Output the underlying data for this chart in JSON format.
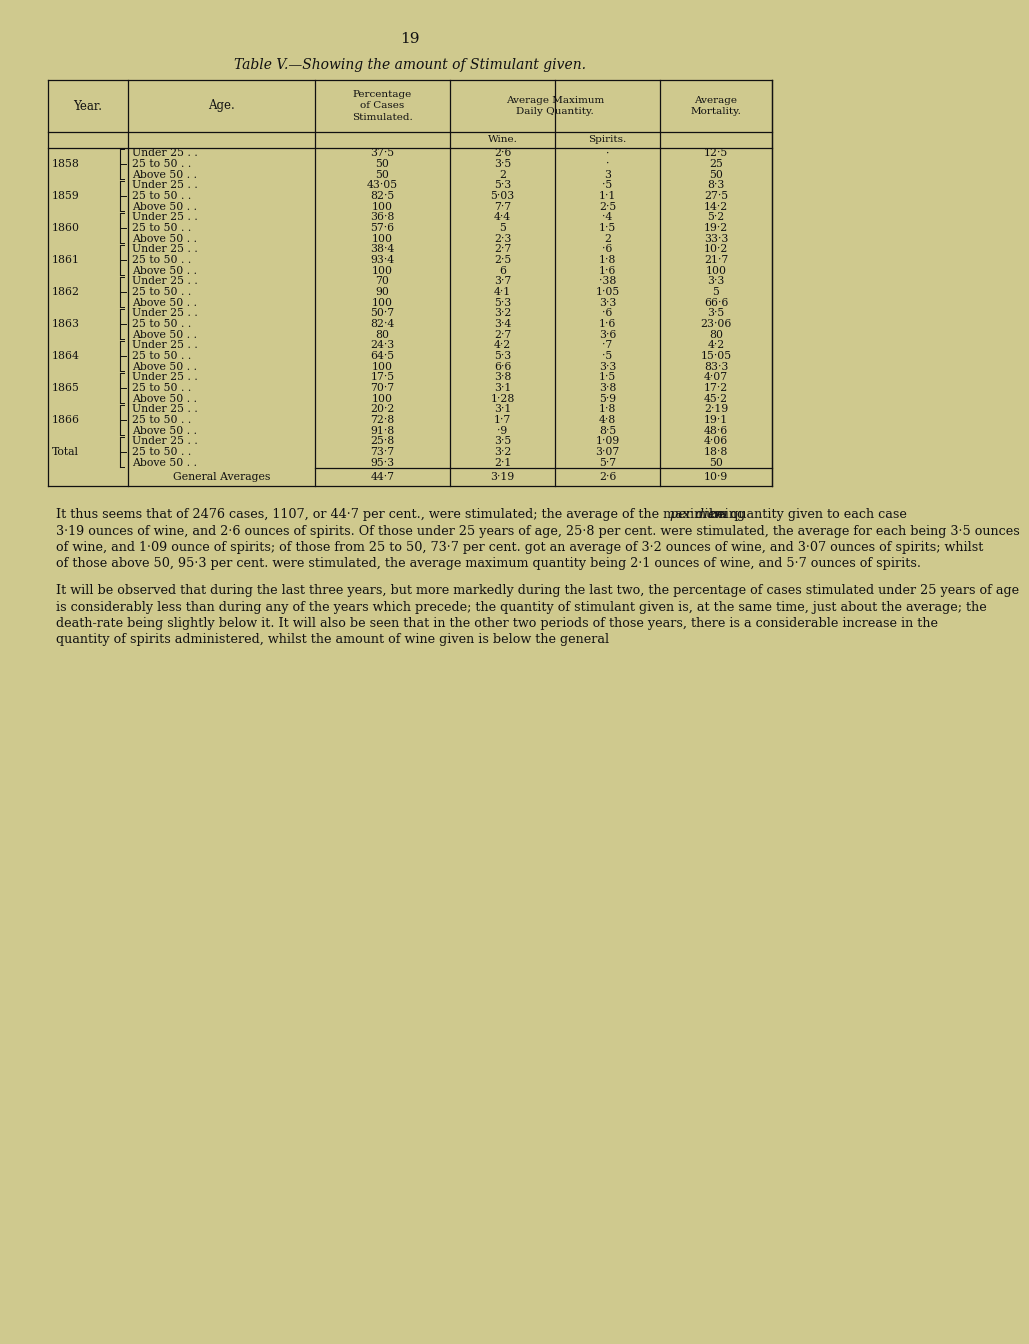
{
  "page_number": "19",
  "title": "Table V.—Showing the amount of Stimulant given.",
  "bg_color": "#cfc98e",
  "text_color": "#111111",
  "rows": [
    {
      "year": "1858",
      "age": "Under 25 . .",
      "pct": "37·5",
      "wine": "2·6",
      "spirits": "·",
      "mort": "12·5"
    },
    {
      "year": "",
      "age": "25 to 50 . .",
      "pct": "50",
      "wine": "3·5",
      "spirits": "·",
      "mort": "25"
    },
    {
      "year": "",
      "age": "Above 50 . .",
      "pct": "50",
      "wine": "2",
      "spirits": "3",
      "mort": "50"
    },
    {
      "year": "1859",
      "age": "Under 25 . .",
      "pct": "43·05",
      "wine": "5·3",
      "spirits": "·5",
      "mort": "8·3"
    },
    {
      "year": "",
      "age": "25 to 50 . .",
      "pct": "82·5",
      "wine": "5·03",
      "spirits": "1·1",
      "mort": "27·5"
    },
    {
      "year": "",
      "age": "Above 50 . .",
      "pct": "100",
      "wine": "7·7",
      "spirits": "2·5",
      "mort": "14·2"
    },
    {
      "year": "1860",
      "age": "Under 25 . .",
      "pct": "36·8",
      "wine": "4·4",
      "spirits": "·4",
      "mort": "5·2"
    },
    {
      "year": "",
      "age": "25 to 50 . .",
      "pct": "57·6",
      "wine": "5",
      "spirits": "1·5",
      "mort": "19·2"
    },
    {
      "year": "",
      "age": "Above 50 . .",
      "pct": "100",
      "wine": "2·3",
      "spirits": "2",
      "mort": "33·3"
    },
    {
      "year": "1861",
      "age": "Under 25 . .",
      "pct": "38·4",
      "wine": "2·7",
      "spirits": "·6",
      "mort": "10·2"
    },
    {
      "year": "",
      "age": "25 to 50 . .",
      "pct": "93·4",
      "wine": "2·5",
      "spirits": "1·8",
      "mort": "21·7"
    },
    {
      "year": "",
      "age": "Above 50 . .",
      "pct": "100",
      "wine": "6",
      "spirits": "1·6",
      "mort": "100"
    },
    {
      "year": "1862",
      "age": "Under 25 . .",
      "pct": "70",
      "wine": "3·7",
      "spirits": "·38",
      "mort": "3·3"
    },
    {
      "year": "",
      "age": "25 to 50 . .",
      "pct": "90",
      "wine": "4·1",
      "spirits": "1·05",
      "mort": "5"
    },
    {
      "year": "",
      "age": "Above 50 . .",
      "pct": "100",
      "wine": "5·3",
      "spirits": "3·3",
      "mort": "66·6"
    },
    {
      "year": "1863",
      "age": "Under 25 . .",
      "pct": "50·7",
      "wine": "3·2",
      "spirits": "·6",
      "mort": "3·5"
    },
    {
      "year": "",
      "age": "25 to 50 . .",
      "pct": "82·4",
      "wine": "3·4",
      "spirits": "1·6",
      "mort": "23·06"
    },
    {
      "year": "",
      "age": "Above 50 . .",
      "pct": "80",
      "wine": "2·7",
      "spirits": "3·6",
      "mort": "80"
    },
    {
      "year": "1864",
      "age": "Under 25 . .",
      "pct": "24·3",
      "wine": "4·2",
      "spirits": "·7",
      "mort": "4·2"
    },
    {
      "year": "",
      "age": "25 to 50 . .",
      "pct": "64·5",
      "wine": "5·3",
      "spirits": "·5",
      "mort": "15·05"
    },
    {
      "year": "",
      "age": "Above 50 . .",
      "pct": "100",
      "wine": "6·6",
      "spirits": "3·3",
      "mort": "83·3"
    },
    {
      "year": "1865",
      "age": "Under 25 . .",
      "pct": "17·5",
      "wine": "3·8",
      "spirits": "1·5",
      "mort": "4·07"
    },
    {
      "year": "",
      "age": "25 to 50 . .",
      "pct": "70·7",
      "wine": "3·1",
      "spirits": "3·8",
      "mort": "17·2"
    },
    {
      "year": "",
      "age": "Above 50 . .",
      "pct": "100",
      "wine": "1·28",
      "spirits": "5·9",
      "mort": "45·2"
    },
    {
      "year": "1866",
      "age": "Under 25 . .",
      "pct": "20·2",
      "wine": "3·1",
      "spirits": "1·8",
      "mort": "2·19"
    },
    {
      "year": "",
      "age": "25 to 50 . .",
      "pct": "72·8",
      "wine": "1·7",
      "spirits": "4·8",
      "mort": "19·1"
    },
    {
      "year": "",
      "age": "Above 50 . .",
      "pct": "91·8",
      "wine": "·9",
      "spirits": "8·5",
      "mort": "48·6"
    },
    {
      "year": "Total",
      "age": "Under 25 . .",
      "pct": "25·8",
      "wine": "3·5",
      "spirits": "1·09",
      "mort": "4·06"
    },
    {
      "year": "",
      "age": "25 to 50 . .",
      "pct": "73·7",
      "wine": "3·2",
      "spirits": "3·07",
      "mort": "18·8"
    },
    {
      "year": "",
      "age": "Above 50 . .",
      "pct": "95·3",
      "wine": "2·1",
      "spirits": "5·7",
      "mort": "50"
    }
  ],
  "general_avg": {
    "pct": "44·7",
    "wine": "3·19",
    "spirits": "2·6",
    "mort": "10·9"
  },
  "year_groups": [
    {
      "label": "1858",
      "start": 0,
      "end": 2
    },
    {
      "label": "1859",
      "start": 3,
      "end": 5
    },
    {
      "label": "1860",
      "start": 6,
      "end": 8
    },
    {
      "label": "1861",
      "start": 9,
      "end": 11
    },
    {
      "label": "1862",
      "start": 12,
      "end": 14
    },
    {
      "label": "1863",
      "start": 15,
      "end": 17
    },
    {
      "label": "1864",
      "start": 18,
      "end": 20
    },
    {
      "label": "1865",
      "start": 21,
      "end": 23
    },
    {
      "label": "1866",
      "start": 24,
      "end": 26
    },
    {
      "label": "Total",
      "start": 27,
      "end": 29
    }
  ],
  "para1_pre": "It thus seems that of 2476 cases, 1107, or 44·7 per cent., were stimulated; the average of the maximum quantity given to each case ",
  "para1_italic": "per diem",
  "para1_post": " being 3·19 ounces of wine, and 2·6 ounces of spirits. Of those under 25 years of age, 25·8 per cent. were stimulated, the average for each being 3·5 ounces of wine, and 1·09 ounce of spirits; of those from 25 to 50, 73·7 per cent. got an average of 3·2 ounces of wine, and 3·07 ounces of spirits; whilst of those above 50, 95·3 per cent. were stimulated, the average maximum quantity being 2·1 ounces of wine, and 5·7 ounces of spirits.",
  "para2": "    It will be observed that during the last three years, but more markedly during the last two, the percentage of cases stimulated under 25 years of age is considerably less than during any of the years which precede; the quantity of stimulant given is, at the same time, just about the average; the death-rate being slightly below it.  It will also be seen that in the other two periods of those years, there is a considerable increase in the quantity of spirits administered, whilst the amount of wine given is below the general"
}
